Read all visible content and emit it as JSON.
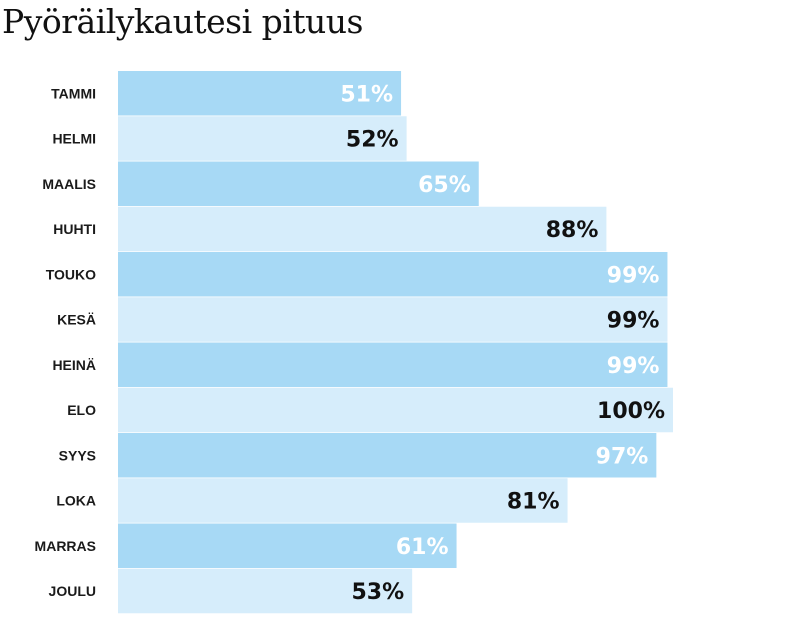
{
  "chart_data": {
    "type": "bar",
    "orientation": "horizontal",
    "title": "Pyöräilykautesi pituus",
    "categories": [
      "TAMMI",
      "HELMI",
      "MAALIS",
      "HUHTI",
      "TOUKO",
      "KESÄ",
      "HEINÄ",
      "ELO",
      "SYYS",
      "LOKA",
      "MARRAS",
      "JOULU"
    ],
    "values": [
      51,
      52,
      65,
      88,
      99,
      99,
      99,
      100,
      97,
      81,
      61,
      53
    ],
    "value_labels": [
      "51%",
      "52%",
      "65%",
      "88%",
      "99%",
      "99%",
      "99%",
      "100%",
      "97%",
      "81%",
      "61%",
      "53%"
    ],
    "xlim": [
      0,
      100
    ],
    "grid": false,
    "legend": "none"
  },
  "colors": {
    "bar_dark": "#a7d9f5",
    "bar_light": "#d6edfb",
    "label_on_dark": "#ffffff",
    "label_on_light": "#111111"
  }
}
